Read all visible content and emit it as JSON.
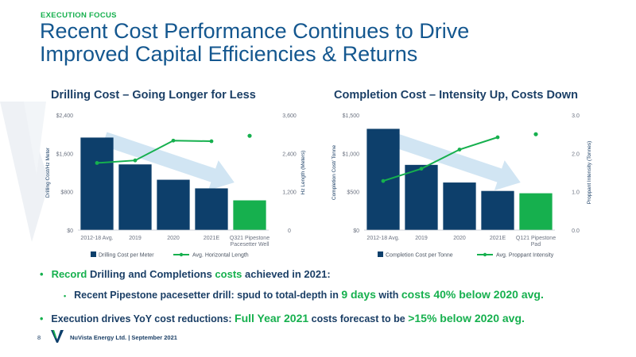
{
  "header": {
    "eyebrow": "EXECUTION FOCUS",
    "title_line1": "Recent Cost Performance Continues to Drive",
    "title_line2": "Improved Capital Efficiencies & Returns"
  },
  "colors": {
    "navy": "#0d3f6b",
    "green": "#16b04e",
    "arrow": "#c9e0f1"
  },
  "chart_data": [
    {
      "type": "bar",
      "title": "Drilling Cost – Going Longer for Less",
      "categories": [
        "2012-18 Avg.",
        "2019",
        "2020",
        "2021E",
        "Q321 Pipestone Pacesetter Well"
      ],
      "category_lines": [
        [
          "2012-18 Avg."
        ],
        [
          "2019"
        ],
        [
          "2020"
        ],
        [
          "2021E"
        ],
        [
          "Q321 Pipestone",
          "Pacesetter Well"
        ]
      ],
      "series": [
        {
          "name": "Drilling Cost per Meter",
          "type": "bar",
          "axis": "left",
          "values": [
            1930,
            1370,
            1050,
            870,
            620
          ]
        },
        {
          "name": "Avg. Horizontal Length",
          "type": "line",
          "axis": "right",
          "values": [
            2100,
            2180,
            2800,
            2780,
            null
          ],
          "extra_point": {
            "index": 4,
            "value": 2950
          }
        }
      ],
      "ylabel": "Drilling Cost/Hz Meter",
      "y2label": "Hz Length (Meters)",
      "ylim": [
        0,
        2400
      ],
      "y2lim": [
        0,
        3600
      ],
      "yticks": [
        "$0",
        "$800",
        "$1,600",
        "$2,400"
      ],
      "yticks_vals": [
        0,
        800,
        1600,
        2400
      ],
      "y2ticks": [
        "0",
        "1,200",
        "2,400",
        "3,600"
      ],
      "y2ticks_vals": [
        0,
        1200,
        2400,
        3600
      ],
      "legend": "bottom",
      "highlight_index": 4
    },
    {
      "type": "bar",
      "title": "Completion Cost – Intensity Up, Costs Down",
      "categories": [
        "2012-18 Avg.",
        "2019",
        "2020",
        "2021E",
        "Q121 Pipestone Pad"
      ],
      "category_lines": [
        [
          "2012-18 Avg."
        ],
        [
          "2019"
        ],
        [
          "2020"
        ],
        [
          "2021E"
        ],
        [
          "Q121 Pipestone",
          "Pad"
        ]
      ],
      "series": [
        {
          "name": "Completion Cost per Tonne",
          "type": "bar",
          "axis": "left",
          "values": [
            1320,
            850,
            620,
            510,
            480
          ]
        },
        {
          "name": "Avg. Proppant Intensity",
          "type": "line",
          "axis": "right",
          "values": [
            1.28,
            1.6,
            2.1,
            2.42,
            null
          ],
          "extra_point": {
            "index": 4,
            "value": 2.5
          }
        }
      ],
      "ylabel": "Completion Cost/ Tonne",
      "y2label": "Proppant Intensity (Tonnes)",
      "ylim": [
        0,
        1500
      ],
      "y2lim": [
        0,
        3
      ],
      "yticks": [
        "$0",
        "$500",
        "$1,000",
        "$1,500"
      ],
      "yticks_vals": [
        0,
        500,
        1000,
        1500
      ],
      "y2ticks": [
        "0.0",
        "1.0",
        "2.0",
        "3.0"
      ],
      "y2ticks_vals": [
        0,
        1,
        2,
        3
      ],
      "legend": "bottom",
      "highlight_index": 4
    }
  ],
  "bullets": {
    "b1": {
      "t1": "Record",
      "t2": " Drilling and Completions ",
      "t3": "costs",
      "t4": " achieved in 2021:"
    },
    "b2": {
      "t1": "Recent Pipestone pacesetter drill: spud to total-depth in ",
      "t2": "9 days",
      "t3": " with ",
      "t4": "costs 40% below 2020 avg."
    },
    "b3": {
      "t1": "Execution drives YoY cost reductions: ",
      "t2": "Full Year 2021",
      "t3": " costs forecast to be ",
      "t4": ">15% below 2020 avg."
    }
  },
  "footer": {
    "page": "8",
    "text": "NuVista Energy Ltd. | September 2021"
  }
}
